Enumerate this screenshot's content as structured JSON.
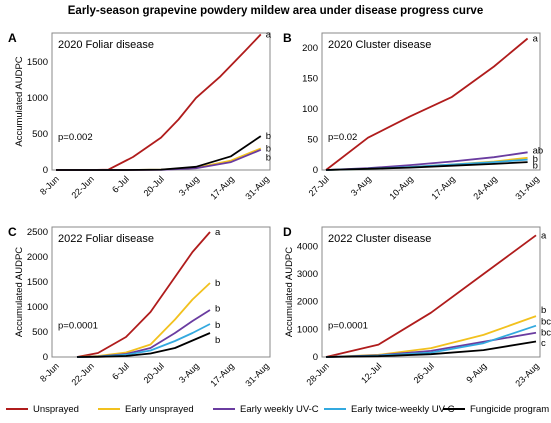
{
  "figure": {
    "title": "Early-season grapevine powdery mildew area under disease progress curve"
  },
  "legend": [
    {
      "label": "Unsprayed",
      "color": "#b01c1c"
    },
    {
      "label": "Early unsprayed",
      "color": "#f2c11e"
    },
    {
      "label": "Early weekly UV-C",
      "color": "#6a3ca0"
    },
    {
      "label": "Early twice-weekly UV-C",
      "color": "#33a9df"
    },
    {
      "label": "Fungicide program",
      "color": "#000000"
    }
  ],
  "chart_data": [
    {
      "panel": "A",
      "type": "line",
      "title": "2020 Foliar disease",
      "ylabel": "Accumulated AUDPC",
      "xlabel": "",
      "categories": [
        "8-Jun",
        "22-Jun",
        "6-Jul",
        "20-Jul",
        "3-Aug",
        "17-Aug",
        "31-Aug"
      ],
      "ylim": [
        0,
        1900
      ],
      "yticks": [
        0,
        500,
        1000,
        1500
      ],
      "pvalue": "p=0.002",
      "grid": false,
      "series": [
        {
          "name": "Unsprayed",
          "color": "#b01c1c",
          "points": [
            [
              0,
              0
            ],
            [
              1,
              0
            ],
            [
              1.5,
              5
            ],
            [
              2.2,
              180
            ],
            [
              3,
              450
            ],
            [
              3.5,
              700
            ],
            [
              4,
              1000
            ],
            [
              4.7,
              1300
            ],
            [
              5.4,
              1650
            ],
            [
              5.85,
              1880
            ]
          ],
          "letter": "a"
        },
        {
          "name": "Early unsprayed",
          "color": "#f2c11e",
          "points": [
            [
              0,
              0
            ],
            [
              1,
              0
            ],
            [
              2,
              0
            ],
            [
              3,
              5
            ],
            [
              4,
              30
            ],
            [
              5,
              130
            ],
            [
              5.85,
              300
            ]
          ],
          "letter": null
        },
        {
          "name": "Early weekly UV-C",
          "color": "#6a3ca0",
          "points": [
            [
              0,
              0
            ],
            [
              1,
              0
            ],
            [
              2,
              0
            ],
            [
              3,
              3
            ],
            [
              4,
              25
            ],
            [
              5,
              110
            ],
            [
              5.85,
              280
            ]
          ],
          "letter": "b"
        },
        {
          "name": "Fungicide program",
          "color": "#000000",
          "points": [
            [
              0,
              0
            ],
            [
              1,
              0
            ],
            [
              2,
              0
            ],
            [
              3,
              5
            ],
            [
              4,
              45
            ],
            [
              5,
              190
            ],
            [
              5.85,
              470
            ]
          ],
          "letter": "b"
        }
      ],
      "letters": [
        {
          "text": "a",
          "y": 1880
        },
        {
          "text": "b",
          "y": 470
        },
        {
          "text": "b",
          "y": 300
        },
        {
          "text": "b",
          "y": 170
        }
      ]
    },
    {
      "panel": "B",
      "type": "line",
      "title": "2020 Cluster disease",
      "ylabel": "",
      "xlabel": "",
      "categories": [
        "27-Jul",
        "3-Aug",
        "10-Aug",
        "17-Aug",
        "24-Aug",
        "31-Aug"
      ],
      "ylim": [
        0,
        225
      ],
      "yticks": [
        0,
        50,
        100,
        150,
        200
      ],
      "pvalue": "p=0.02",
      "grid": false,
      "series": [
        {
          "name": "Unsprayed",
          "color": "#b01c1c",
          "points": [
            [
              0,
              0
            ],
            [
              1,
              53
            ],
            [
              2,
              88
            ],
            [
              3,
              120
            ],
            [
              4,
              170
            ],
            [
              4.8,
              216
            ]
          ],
          "letter": "a"
        },
        {
          "name": "Early unsprayed",
          "color": "#f2c11e",
          "points": [
            [
              0,
              0
            ],
            [
              1,
              2
            ],
            [
              2,
              5
            ],
            [
              3,
              9
            ],
            [
              4,
              14
            ],
            [
              4.8,
              20
            ]
          ],
          "letter": null
        },
        {
          "name": "Early weekly UV-C",
          "color": "#6a3ca0",
          "points": [
            [
              0,
              0
            ],
            [
              1,
              3
            ],
            [
              2,
              8
            ],
            [
              3,
              14
            ],
            [
              4,
              21
            ],
            [
              4.8,
              29
            ]
          ],
          "letter": "ab"
        },
        {
          "name": "Early twice-weekly UV-C",
          "color": "#33a9df",
          "points": [
            [
              0,
              0
            ],
            [
              1,
              2
            ],
            [
              2,
              5
            ],
            [
              3,
              9
            ],
            [
              4,
              13
            ],
            [
              4.8,
              17
            ]
          ],
          "letter": null
        },
        {
          "name": "Fungicide program",
          "color": "#000000",
          "points": [
            [
              0,
              0
            ],
            [
              1,
              2
            ],
            [
              2,
              4
            ],
            [
              3,
              7
            ],
            [
              4,
              10
            ],
            [
              4.8,
              13
            ]
          ],
          "letter": "b"
        }
      ],
      "letters": [
        {
          "text": "a",
          "y": 216
        },
        {
          "text": "ab",
          "y": 32
        },
        {
          "text": "b",
          "y": 18
        },
        {
          "text": "b",
          "y": 7
        }
      ]
    },
    {
      "panel": "C",
      "type": "line",
      "title": "2022 Foliar disease",
      "ylabel": "Accumulated AUDPC",
      "xlabel": "",
      "categories": [
        "8-Jun",
        "22-Jun",
        "6-Jul",
        "20-Jul",
        "3-Aug",
        "17-Aug",
        "31-Aug"
      ],
      "ylim": [
        0,
        2600
      ],
      "yticks": [
        0,
        500,
        1000,
        1500,
        2000,
        2500
      ],
      "pvalue": "p=0.0001",
      "grid": false,
      "series": [
        {
          "name": "Unsprayed",
          "color": "#b01c1c",
          "points": [
            [
              0.6,
              0
            ],
            [
              1.2,
              80
            ],
            [
              2,
              400
            ],
            [
              2.7,
              900
            ],
            [
              3.4,
              1600
            ],
            [
              3.9,
              2100
            ],
            [
              4.4,
              2500
            ]
          ],
          "letter": "a"
        },
        {
          "name": "Early unsprayed",
          "color": "#f2c11e",
          "points": [
            [
              0.6,
              0
            ],
            [
              1.2,
              20
            ],
            [
              2,
              90
            ],
            [
              2.7,
              250
            ],
            [
              3.4,
              750
            ],
            [
              3.9,
              1150
            ],
            [
              4.4,
              1480
            ]
          ],
          "letter": "b"
        },
        {
          "name": "Early weekly UV-C",
          "color": "#6a3ca0",
          "points": [
            [
              0.6,
              0
            ],
            [
              1.2,
              10
            ],
            [
              2,
              60
            ],
            [
              2.7,
              180
            ],
            [
              3.4,
              480
            ],
            [
              3.9,
              720
            ],
            [
              4.4,
              940
            ]
          ],
          "letter": "b"
        },
        {
          "name": "Early twice-weekly UV-C",
          "color": "#33a9df",
          "points": [
            [
              0.6,
              0
            ],
            [
              1.2,
              8
            ],
            [
              2,
              45
            ],
            [
              2.7,
              130
            ],
            [
              3.4,
              320
            ],
            [
              3.9,
              480
            ],
            [
              4.4,
              660
            ]
          ],
          "letter": "b"
        },
        {
          "name": "Fungicide program",
          "color": "#000000",
          "points": [
            [
              0.6,
              0
            ],
            [
              1.2,
              5
            ],
            [
              2,
              20
            ],
            [
              2.7,
              70
            ],
            [
              3.4,
              180
            ],
            [
              3.9,
              330
            ],
            [
              4.4,
              480
            ]
          ],
          "letter": "b"
        }
      ],
      "letters": [
        {
          "text": "a",
          "y": 2500
        },
        {
          "text": "b",
          "y": 1480
        },
        {
          "text": "b",
          "y": 970
        },
        {
          "text": "b",
          "y": 640
        },
        {
          "text": "b",
          "y": 340
        }
      ]
    },
    {
      "panel": "D",
      "type": "line",
      "title": "2022 Cluster disease",
      "ylabel": "Accumulated AUDPC",
      "xlabel": "",
      "categories": [
        "28-Jun",
        "12-Jul",
        "26-Jul",
        "9-Aug",
        "23-Aug"
      ],
      "ylim": [
        0,
        4700
      ],
      "yticks": [
        0,
        1000,
        2000,
        3000,
        4000
      ],
      "pvalue": "p=0.0001",
      "grid": false,
      "series": [
        {
          "name": "Unsprayed",
          "color": "#b01c1c",
          "points": [
            [
              0,
              0
            ],
            [
              1,
              450
            ],
            [
              2,
              1600
            ],
            [
              3,
              3000
            ],
            [
              4,
              4400
            ]
          ],
          "letter": "a"
        },
        {
          "name": "Early unsprayed",
          "color": "#f2c11e",
          "points": [
            [
              0,
              0
            ],
            [
              1,
              80
            ],
            [
              2,
              320
            ],
            [
              3,
              800
            ],
            [
              4,
              1480
            ]
          ],
          "letter": "b"
        },
        {
          "name": "Early weekly UV-C",
          "color": "#6a3ca0",
          "points": [
            [
              0,
              0
            ],
            [
              1,
              60
            ],
            [
              2,
              220
            ],
            [
              3,
              550
            ],
            [
              4,
              880
            ]
          ],
          "letter": "bc"
        },
        {
          "name": "Early twice-weekly UV-C",
          "color": "#33a9df",
          "points": [
            [
              0,
              0
            ],
            [
              1,
              50
            ],
            [
              2,
              160
            ],
            [
              3,
              500
            ],
            [
              4,
              1130
            ]
          ],
          "letter": "bc"
        },
        {
          "name": "Fungicide program",
          "color": "#000000",
          "points": [
            [
              0,
              0
            ],
            [
              1,
              30
            ],
            [
              2,
              100
            ],
            [
              3,
              250
            ],
            [
              4,
              560
            ]
          ],
          "letter": "c"
        }
      ],
      "letters": [
        {
          "text": "a",
          "y": 4400
        },
        {
          "text": "b",
          "y": 1700
        },
        {
          "text": "bc",
          "y": 1280
        },
        {
          "text": "bc",
          "y": 890
        },
        {
          "text": "c",
          "y": 500
        }
      ]
    }
  ]
}
